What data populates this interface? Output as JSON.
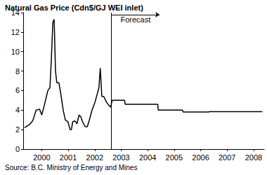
{
  "chart_data": {
    "type": "line",
    "title": "Natural Gas Price (Cdn$/GJ WEI inlet)",
    "source": "Source: B.C. Ministry of Energy and Mines",
    "color": "#000000",
    "x": [
      1999.85,
      2000.03,
      2000.16,
      2000.29,
      2000.42,
      2000.5,
      2000.6,
      2000.73,
      2000.81,
      2000.86,
      2000.92,
      2000.97,
      2001.02,
      2001.07,
      2001.15,
      2001.23,
      2001.31,
      2001.39,
      2001.49,
      2001.57,
      2001.62,
      2001.67,
      2001.75,
      2001.83,
      2001.91,
      2001.98,
      2002.04,
      2002.14,
      2002.22,
      2002.3,
      2002.4,
      2002.51,
      2002.58,
      2002.66,
      2002.71,
      2002.77,
      2002.84,
      2002.95,
      2003.03,
      2003.1,
      2003.16,
      2003.63,
      2003.65,
      2004.88,
      2004.9,
      2005.81,
      2005.84,
      2006.8,
      2006.83,
      2008.83
    ],
    "values": [
      2.2,
      2.5,
      2.9,
      4.0,
      4.1,
      3.5,
      4.5,
      6.0,
      6.3,
      9.0,
      13.0,
      13.3,
      8.0,
      6.8,
      6.8,
      5.5,
      4.0,
      3.0,
      2.8,
      2.0,
      2.0,
      2.8,
      2.9,
      2.6,
      3.5,
      3.3,
      2.8,
      2.3,
      2.3,
      3.0,
      4.0,
      4.8,
      5.5,
      6.3,
      8.3,
      5.4,
      5.4,
      4.8,
      4.5,
      4.3,
      5.0,
      5.0,
      4.6,
      4.6,
      4.0,
      4.0,
      3.8,
      3.8,
      3.85,
      3.85
    ],
    "xlim": [
      1999.8,
      2008.9
    ],
    "xticks": [
      {
        "value": 2000.5,
        "label": "2000"
      },
      {
        "value": 2001.5,
        "label": "2001"
      },
      {
        "value": 2002.5,
        "label": "2002"
      },
      {
        "value": 2003.5,
        "label": "2003"
      },
      {
        "value": 2004.5,
        "label": "2004"
      },
      {
        "value": 2005.5,
        "label": "2005"
      },
      {
        "value": 2006.5,
        "label": "2006"
      },
      {
        "value": 2007.5,
        "label": "2007"
      },
      {
        "value": 2008.5,
        "label": "2008"
      }
    ],
    "ylim": [
      0,
      14
    ],
    "yticks": [
      0,
      2,
      4,
      6,
      8,
      10,
      12,
      14
    ],
    "grid": false,
    "annotations": [
      {
        "text": "Forecast",
        "x": 2003.13
      }
    ]
  }
}
